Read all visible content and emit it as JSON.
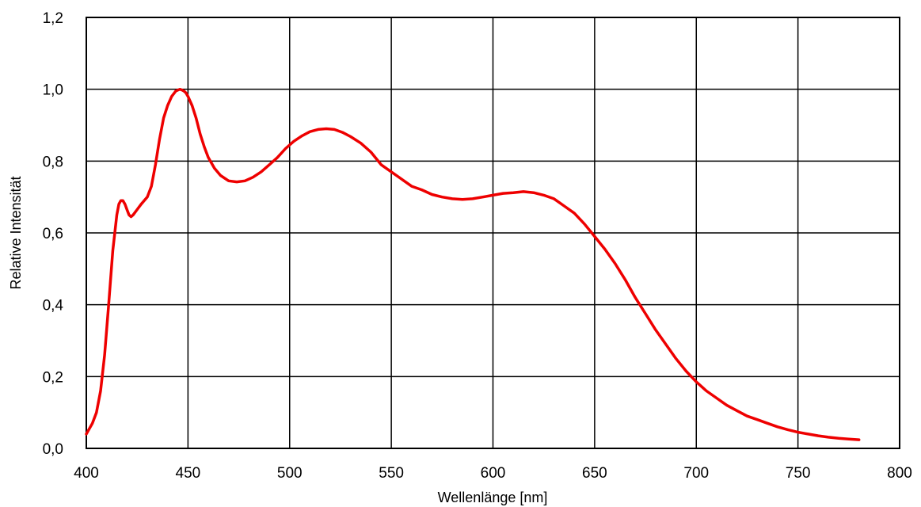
{
  "chart_data": {
    "type": "line",
    "title": "",
    "xlabel": "Wellenlänge [nm]",
    "ylabel": "Relative Intensität",
    "xlim": [
      400,
      800
    ],
    "ylim": [
      0,
      1.2
    ],
    "x_ticks": [
      400,
      450,
      500,
      550,
      600,
      650,
      700,
      750,
      800
    ],
    "x_tick_labels": [
      "400",
      "450",
      "500",
      "550",
      "600",
      "650",
      "700",
      "750",
      "800"
    ],
    "y_ticks": [
      0,
      0.2,
      0.4,
      0.6,
      0.8,
      1.0,
      1.2
    ],
    "y_tick_labels": [
      "0,0",
      "0,2",
      "0,4",
      "0,6",
      "0,8",
      "1,0",
      "1,2"
    ],
    "grid": true,
    "legend": "none",
    "series": [
      {
        "color": "#ee0000",
        "x": [
          400,
          403,
          405,
          407,
          409,
          411,
          413,
          415,
          416,
          417,
          418,
          419,
          420,
          421,
          422,
          423,
          425,
          427,
          430,
          432,
          434,
          436,
          438,
          440,
          442,
          444,
          446,
          447,
          448,
          449,
          450,
          452,
          454,
          456,
          458,
          460,
          463,
          466,
          470,
          474,
          478,
          482,
          486,
          490,
          494,
          498,
          502,
          506,
          510,
          514,
          518,
          522,
          526,
          530,
          535,
          540,
          545,
          550,
          555,
          560,
          565,
          570,
          575,
          580,
          585,
          590,
          595,
          600,
          605,
          610,
          615,
          620,
          625,
          630,
          635,
          640,
          645,
          650,
          655,
          660,
          665,
          670,
          675,
          680,
          685,
          690,
          695,
          700,
          705,
          710,
          715,
          720,
          725,
          730,
          735,
          740,
          745,
          750,
          755,
          760,
          765,
          770,
          775,
          780
        ],
        "y": [
          0.04,
          0.07,
          0.1,
          0.16,
          0.26,
          0.4,
          0.55,
          0.65,
          0.68,
          0.69,
          0.69,
          0.68,
          0.665,
          0.65,
          0.645,
          0.65,
          0.665,
          0.68,
          0.7,
          0.73,
          0.79,
          0.86,
          0.92,
          0.955,
          0.98,
          0.995,
          1.0,
          0.998,
          0.995,
          0.99,
          0.98,
          0.955,
          0.92,
          0.875,
          0.84,
          0.81,
          0.78,
          0.76,
          0.745,
          0.742,
          0.745,
          0.755,
          0.77,
          0.79,
          0.81,
          0.835,
          0.855,
          0.87,
          0.882,
          0.888,
          0.89,
          0.888,
          0.88,
          0.868,
          0.85,
          0.825,
          0.79,
          0.77,
          0.75,
          0.73,
          0.72,
          0.707,
          0.7,
          0.695,
          0.693,
          0.695,
          0.7,
          0.705,
          0.71,
          0.712,
          0.715,
          0.712,
          0.705,
          0.695,
          0.675,
          0.655,
          0.625,
          0.59,
          0.555,
          0.515,
          0.47,
          0.42,
          0.375,
          0.33,
          0.29,
          0.25,
          0.215,
          0.185,
          0.16,
          0.14,
          0.12,
          0.105,
          0.09,
          0.08,
          0.07,
          0.06,
          0.052,
          0.045,
          0.04,
          0.035,
          0.031,
          0.028,
          0.026,
          0.024
        ]
      }
    ]
  }
}
